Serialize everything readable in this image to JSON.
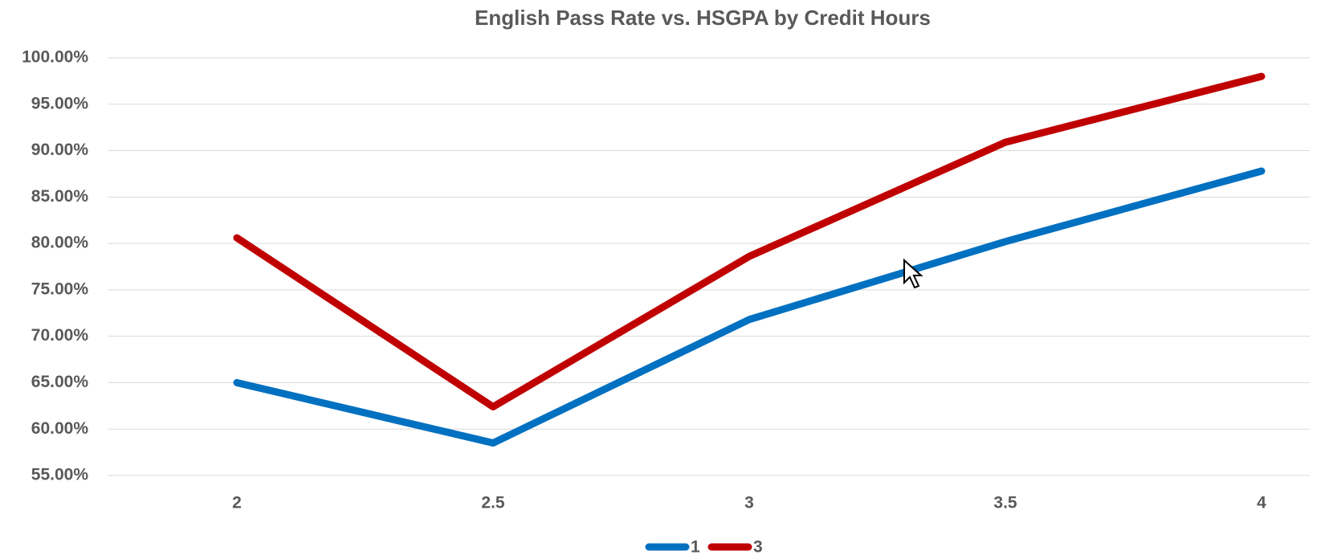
{
  "chart_data": {
    "type": "line",
    "title": "English Pass Rate vs. HSGPA by Credit Hours",
    "categories": [
      "2",
      "2.5",
      "3",
      "3.5",
      "4"
    ],
    "series": [
      {
        "name": "1",
        "color": "#0070c0",
        "values": [
          65.0,
          58.5,
          71.8,
          80.2,
          87.8
        ]
      },
      {
        "name": "3",
        "color": "#c00000",
        "values": [
          80.6,
          62.4,
          78.6,
          90.9,
          98.0
        ]
      }
    ],
    "ylim": [
      55,
      100
    ],
    "yticks": [
      {
        "value": 55,
        "label": "55.00%"
      },
      {
        "value": 60,
        "label": "60.00%"
      },
      {
        "value": 65,
        "label": "65.00%"
      },
      {
        "value": 70,
        "label": "70.00%"
      },
      {
        "value": 75,
        "label": "75.00%"
      },
      {
        "value": 80,
        "label": "80.00%"
      },
      {
        "value": 85,
        "label": "85.00%"
      },
      {
        "value": 90,
        "label": "90.00%"
      },
      {
        "value": 95,
        "label": "95.00%"
      },
      {
        "value": 100,
        "label": "100.00%"
      }
    ],
    "grid": true,
    "legend": "bottom"
  }
}
